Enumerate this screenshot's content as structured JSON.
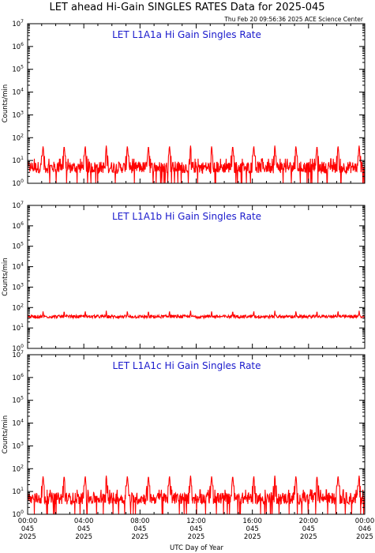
{
  "title": "LET ahead Hi-Gain SINGLES RATES Data for 2025-045",
  "timestamp": "Thu Feb 20 09:56:36 2025 ACE Science Center",
  "xlabel": "UTC Day of Year",
  "colors": {
    "trace": "#ff0000",
    "panel_title": "#1a1acc",
    "axes": "#000000"
  },
  "chart_data": [
    {
      "type": "line",
      "title": "LET L1A1a Hi Gain Singles Rate",
      "ylabel": "Counts/min",
      "yscale": "log",
      "ylim": [
        1,
        10000000
      ],
      "ytick_base": "10",
      "ytick_exponents": [
        "0",
        "1",
        "2",
        "3",
        "4",
        "5",
        "6",
        "7"
      ],
      "xlim_hours": [
        0,
        24
      ],
      "series": [
        {
          "baseline_counts_per_min": 5,
          "spike_peak_counts_per_min": 45,
          "spike_period_hours": 1.5,
          "first_spike_hour": 1.1
        }
      ]
    },
    {
      "type": "line",
      "title": "LET L1A1b Hi Gain Singles Rate",
      "ylabel": "Counts/min",
      "yscale": "log",
      "ylim": [
        1,
        10000000
      ],
      "ytick_base": "10",
      "ytick_exponents": [
        "0",
        "1",
        "2",
        "3",
        "4",
        "5",
        "6",
        "7"
      ],
      "xlim_hours": [
        0,
        24
      ],
      "series": [
        {
          "baseline_counts_per_min": 36,
          "spike_peak_counts_per_min": 70,
          "spike_period_hours": 1.5,
          "first_spike_hour": 1.1
        }
      ]
    },
    {
      "type": "line",
      "title": "LET L1A1c Hi Gain Singles Rate",
      "ylabel": "Counts/min",
      "yscale": "log",
      "ylim": [
        1,
        10000000
      ],
      "ytick_base": "10",
      "ytick_exponents": [
        "0",
        "1",
        "2",
        "3",
        "4",
        "5",
        "6",
        "7"
      ],
      "xlim_hours": [
        0,
        24
      ],
      "series": [
        {
          "baseline_counts_per_min": 5,
          "spike_peak_counts_per_min": 50,
          "spike_period_hours": 1.5,
          "first_spike_hour": 1.1
        }
      ]
    }
  ],
  "xticks": [
    {
      "hour": 0,
      "time": "00:00",
      "doy": "045",
      "year": "2025"
    },
    {
      "hour": 4,
      "time": "04:00",
      "doy": "045",
      "year": "2025"
    },
    {
      "hour": 8,
      "time": "08:00",
      "doy": "045",
      "year": "2025"
    },
    {
      "hour": 12,
      "time": "12:00",
      "doy": "045",
      "year": "2025"
    },
    {
      "hour": 16,
      "time": "16:00",
      "doy": "045",
      "year": "2025"
    },
    {
      "hour": 20,
      "time": "20:00",
      "doy": "045",
      "year": "2025"
    },
    {
      "hour": 24,
      "time": "00:00",
      "doy": "046",
      "year": "2025"
    }
  ]
}
